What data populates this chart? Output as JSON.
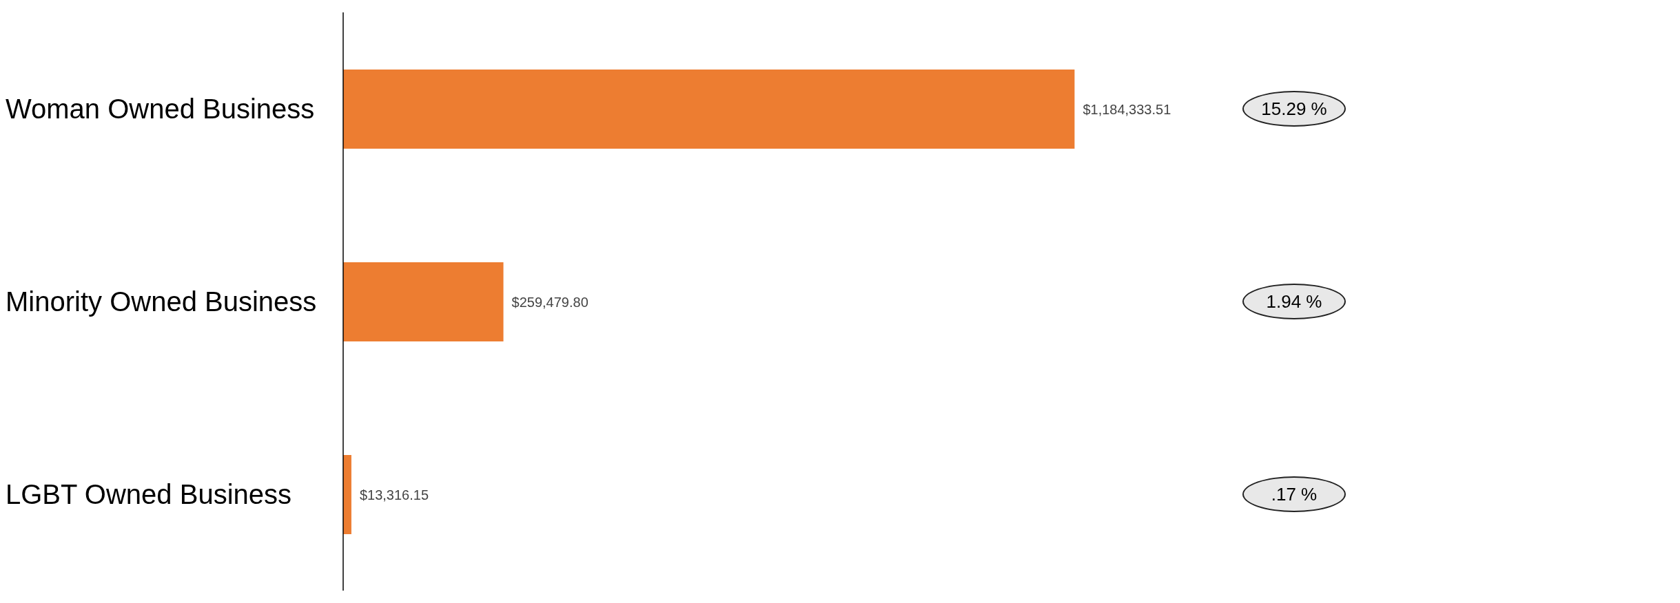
{
  "chart_data": {
    "type": "bar",
    "orientation": "horizontal",
    "categories": [
      "Woman Owned Business",
      "Minority Owned Business",
      "LGBT Owned Business"
    ],
    "values": [
      1184333.51,
      259479.8,
      13316.15
    ],
    "value_labels": [
      "$1,184,333.51",
      "$259,479.80",
      "$13,316.15"
    ],
    "color": "#ed7d31",
    "annotations": [
      "15.29 %",
      "1.94 %",
      ".17 %"
    ],
    "grid": false,
    "legend": false
  }
}
